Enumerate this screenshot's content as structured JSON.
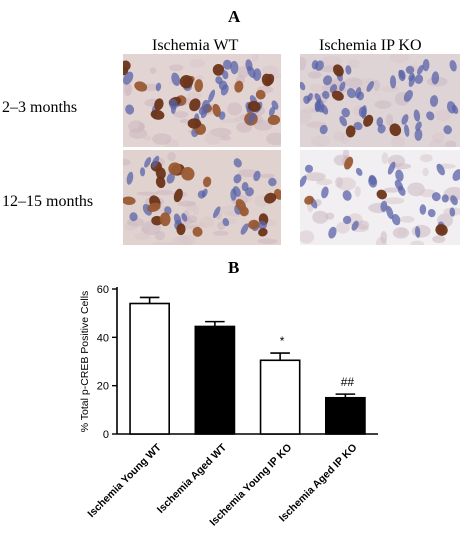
{
  "panel_a": {
    "label": "A",
    "columns": [
      "Ischemia WT",
      "Ischemia IP KO"
    ],
    "rows": [
      "2–3 months",
      "12–15 months"
    ]
  },
  "panel_b": {
    "label": "B"
  },
  "colors": {
    "hematoxylin_blue": "#5a63a8",
    "dab_brown": "#6b3418",
    "tissue_bg": "#ddd2cf",
    "bar_fill_dark": "#000000",
    "bar_fill_light": "#ffffff"
  },
  "chart_data": {
    "type": "bar",
    "title": "",
    "xlabel": "",
    "ylabel": "% Total p-CREB Positive Cells",
    "ylim": [
      0,
      60
    ],
    "yticks": [
      0,
      20,
      40,
      60
    ],
    "categories": [
      "Ischemia Young WT",
      "Ischemia Aged WT",
      "Ischemia Young IP KO",
      "Ischemia Aged IP KO"
    ],
    "values": [
      54,
      44.5,
      30.5,
      15
    ],
    "errors": [
      2.5,
      2,
      3,
      1.5
    ],
    "fills": [
      "white",
      "black",
      "white",
      "black"
    ],
    "annotations": [
      "",
      "",
      "*",
      "##"
    ],
    "grid": false,
    "legend": "none"
  }
}
